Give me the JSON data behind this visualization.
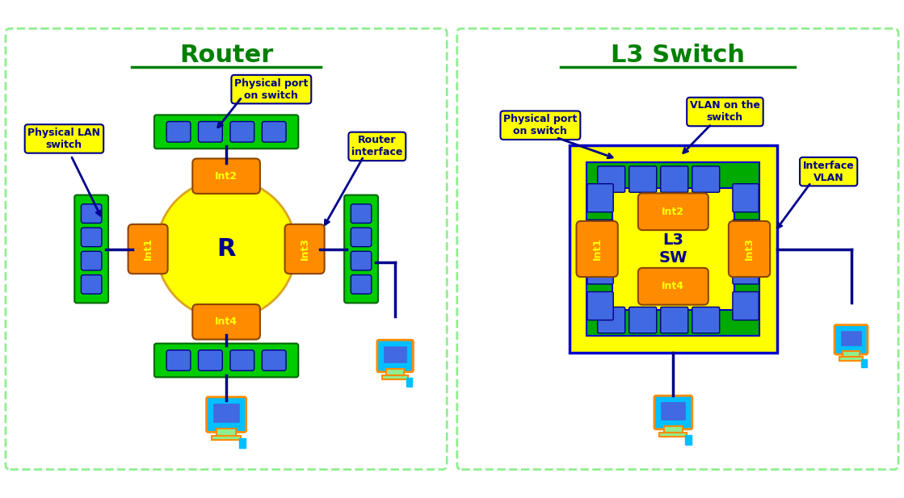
{
  "fig_width": 11.19,
  "fig_height": 6.17,
  "bg_color": "#ffffff",
  "panel_border_color": "#90EE90",
  "router_title": "Router",
  "switch_title": "L3 Switch",
  "title_color": "#008000",
  "title_fontsize": 22,
  "label_bg": "#FFFF00",
  "label_text_color": "#00008B",
  "label_fontsize": 9,
  "router_circle_color": "#FFFF00",
  "router_circle_edge": "#DAA520",
  "router_label": "R",
  "switch_label": "L3\nSW",
  "interface_color": "#FF8C00",
  "interface_text": "#FFFF00",
  "switch_outer_color": "#FFFF00",
  "switch_outer_edge": "#0000CD",
  "switch_inner_color": "#00AA00",
  "port_green_color": "#00CC00",
  "port_blue_color": "#4169E1",
  "computer_body": "#00BFFF",
  "computer_screen": "#4169E1",
  "computer_stand": "#90EE90",
  "arrow_color": "#00008B",
  "line_color": "#00008B"
}
